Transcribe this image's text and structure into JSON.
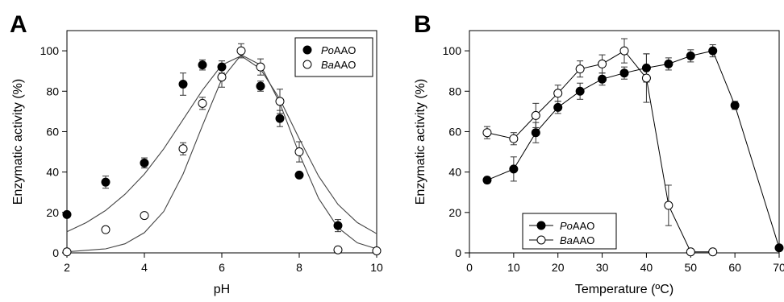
{
  "figure": {
    "panels": [
      "A",
      "B"
    ]
  },
  "chart_data": [
    {
      "panel": "A",
      "type": "scatter",
      "title": "",
      "xlabel": "pH",
      "ylabel": "Enzymatic activity (%)",
      "xlim": [
        2,
        10
      ],
      "ylim": [
        0,
        110
      ],
      "xticks": [
        2,
        4,
        6,
        8,
        10
      ],
      "yticks": [
        0,
        20,
        40,
        60,
        80,
        100
      ],
      "grid": false,
      "legend_position": "top-right",
      "fitted_curves": true,
      "series": [
        {
          "name": "PoAAO",
          "name_italic": "Po",
          "name_plain": "AAO",
          "marker": "filled-circle",
          "x": [
            2,
            3,
            4,
            5,
            5.5,
            6,
            7,
            7.5,
            8,
            9
          ],
          "y": [
            19,
            35,
            44.5,
            83.5,
            93,
            92,
            82.5,
            66.5,
            38.5,
            13.5
          ],
          "err": [
            0,
            3,
            2.5,
            5.5,
            2.5,
            3,
            2.5,
            4,
            0,
            3
          ],
          "fit_curve": [
            [
              2,
              10.5
            ],
            [
              2.5,
              15
            ],
            [
              3,
              21
            ],
            [
              3.5,
              29
            ],
            [
              4,
              39
            ],
            [
              4.5,
              51.5
            ],
            [
              5,
              66
            ],
            [
              5.5,
              80.5
            ],
            [
              6,
              93
            ],
            [
              6.5,
              97.5
            ],
            [
              7,
              91
            ],
            [
              7.5,
              76
            ],
            [
              8,
              56.5
            ],
            [
              8.5,
              38
            ],
            [
              9,
              24
            ],
            [
              9.5,
              15
            ],
            [
              10,
              9.5
            ]
          ]
        },
        {
          "name": "BaAAO",
          "name_italic": "Ba",
          "name_plain": "AAO",
          "marker": "open-circle",
          "x": [
            2,
            3,
            4,
            5,
            5.5,
            6,
            6.5,
            7,
            7.5,
            8,
            9,
            10
          ],
          "y": [
            0.5,
            11.5,
            18.5,
            51.5,
            74,
            87,
            100,
            92,
            75,
            50,
            1.5,
            1
          ],
          "err": [
            0,
            0,
            0,
            3,
            3,
            5,
            3.5,
            4,
            6,
            5,
            0,
            0
          ],
          "fit_curve": [
            [
              2,
              0.5
            ],
            [
              3,
              2
            ],
            [
              3.5,
              4.5
            ],
            [
              4,
              10
            ],
            [
              4.5,
              20.5
            ],
            [
              5,
              39
            ],
            [
              5.5,
              63
            ],
            [
              6,
              86
            ],
            [
              6.5,
              98
            ],
            [
              7,
              93
            ],
            [
              7.5,
              74
            ],
            [
              8,
              49
            ],
            [
              8.5,
              27
            ],
            [
              9,
              12.5
            ],
            [
              9.5,
              5
            ],
            [
              10,
              2
            ]
          ]
        }
      ]
    },
    {
      "panel": "B",
      "type": "line",
      "title": "",
      "xlabel": "Temperature (ºC)",
      "ylabel": "Enzymatic activity (%)",
      "xlim": [
        0,
        70
      ],
      "ylim": [
        0,
        110
      ],
      "xticks": [
        0,
        10,
        20,
        30,
        40,
        50,
        60,
        70
      ],
      "yticks": [
        0,
        20,
        40,
        60,
        80,
        100
      ],
      "grid": false,
      "legend_position": "bottom-left",
      "series": [
        {
          "name": "PoAAO",
          "name_italic": "Po",
          "name_plain": "AAO",
          "marker": "filled-circle",
          "x": [
            4,
            10,
            15,
            20,
            25,
            30,
            35,
            40,
            45,
            50,
            55,
            60,
            70
          ],
          "y": [
            36,
            41.5,
            59.5,
            72,
            80,
            86,
            89,
            91.5,
            93.5,
            97.5,
            100,
            73,
            2.5
          ],
          "err": [
            1.5,
            6,
            5,
            3,
            4,
            3,
            3,
            7,
            3,
            3,
            3,
            2,
            0
          ]
        },
        {
          "name": "BaAAO",
          "name_italic": "Ba",
          "name_plain": "AAO",
          "marker": "open-circle",
          "x": [
            4,
            10,
            15,
            20,
            25,
            30,
            35,
            40,
            45,
            50,
            55
          ],
          "y": [
            59.5,
            56.5,
            68,
            79,
            91,
            93.5,
            100,
            86.5,
            23.5,
            0.5,
            0.5
          ],
          "err": [
            3,
            3,
            6,
            4,
            4,
            4.5,
            6,
            12,
            10,
            0,
            0
          ]
        }
      ]
    }
  ]
}
